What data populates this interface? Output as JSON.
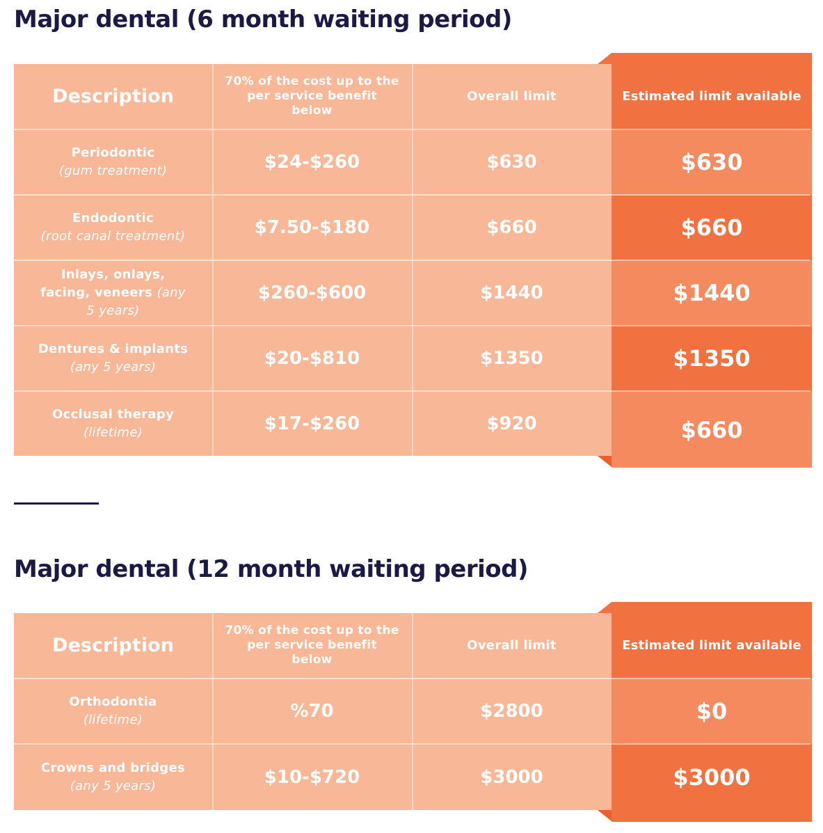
{
  "section1": {
    "title": "Major dental (6 month waiting period)",
    "headers": {
      "description": "Description",
      "benefit": "70% of the cost up to the per service benefit below",
      "overall": "Overall limit",
      "estimated": "Estimated limit available"
    },
    "rows": [
      {
        "name": "Periodontic",
        "note": "(gum treatment)",
        "benefit": "$24-$260",
        "overall": "$630",
        "estimated": "$630"
      },
      {
        "name": "Endodontic",
        "note": "(root canal treatment)",
        "benefit": "$7.50-$180",
        "overall": "$660",
        "estimated": "$660"
      },
      {
        "name": "Inlays, onlays, facing, veneers",
        "note": "(any 5 years)",
        "benefit": "$260-$600",
        "overall": "$1440",
        "estimated": "$1440"
      },
      {
        "name": "Dentures & implants",
        "note": "(any 5 years)",
        "benefit": "$20-$810",
        "overall": "$1350",
        "estimated": "$1350"
      },
      {
        "name": "Occlusal therapy",
        "note": "(lifetime)",
        "benefit": "$17-$260",
        "overall": "$920",
        "estimated": "$660"
      }
    ]
  },
  "section2": {
    "title": "Major dental (12 month waiting period)",
    "headers": {
      "description": "Description",
      "benefit": "70% of the cost up to the per service benefit below",
      "overall": "Overall limit",
      "estimated": "Estimated limit available"
    },
    "rows": [
      {
        "name": "Orthodontia",
        "note": "(lifetime)",
        "benefit": "%70",
        "overall": "$2800",
        "estimated": "$0"
      },
      {
        "name": "Crowns and bridges",
        "note": "(any 5 years)",
        "benefit": "$10-$720",
        "overall": "$3000",
        "estimated": "$3000"
      }
    ]
  },
  "colors": {
    "heading": "#1c1a45",
    "table_fill": "#f8b796",
    "highlight": "#f27140",
    "highlight_light": "#f48a5e"
  }
}
